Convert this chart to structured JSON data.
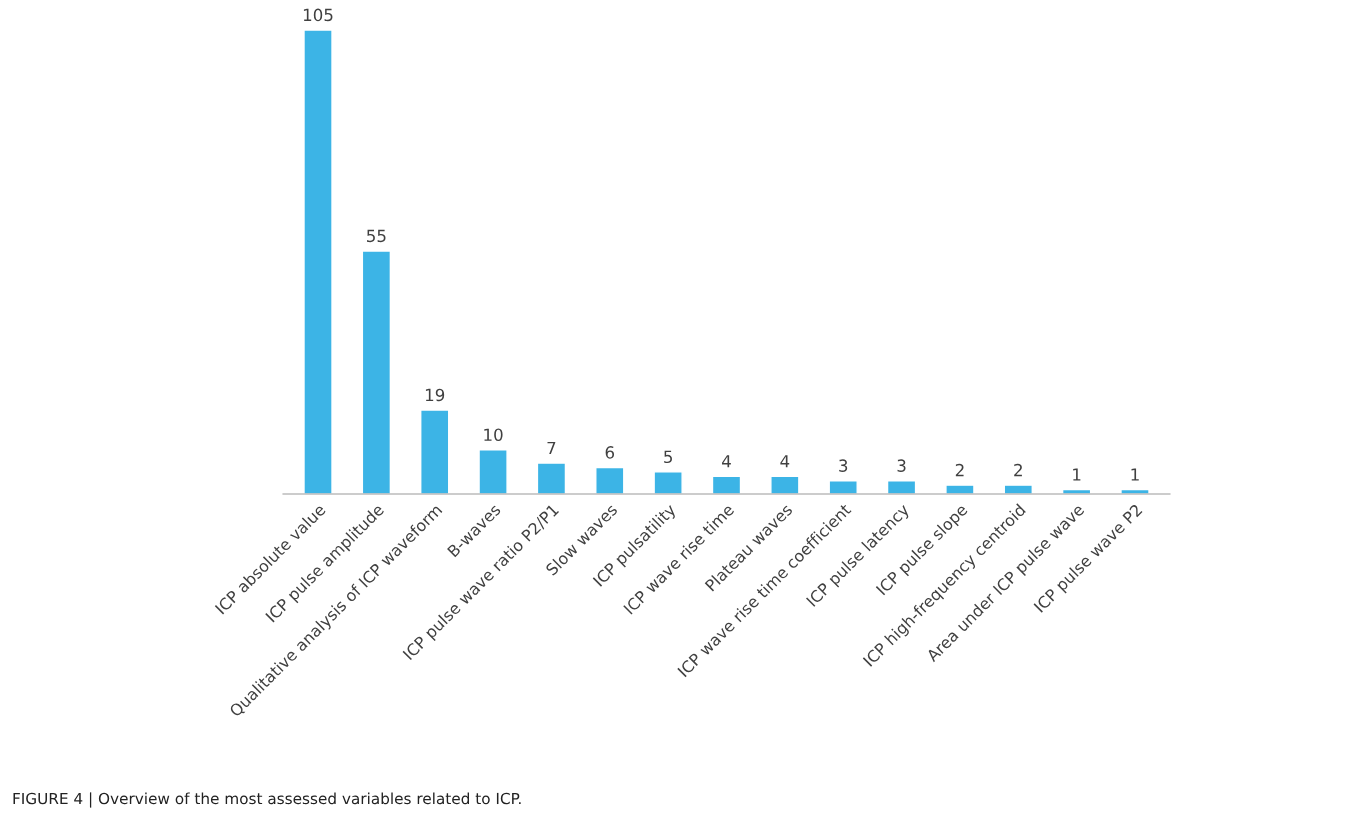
{
  "chart_data": {
    "type": "bar",
    "categories": [
      "ICP absolute value",
      "ICP pulse amplitude",
      "Qualitative analysis of ICP waveform",
      "B-waves",
      "ICP pulse wave ratio P2/P1",
      "Slow waves",
      "ICP pulsatility",
      "ICP wave rise time",
      "Plateau waves",
      "ICP wave rise time coefficient",
      "ICP pulse latency",
      "ICP pulse slope",
      "ICP high-frequency centroid",
      "Area under ICP pulse wave",
      "ICP pulse wave P2"
    ],
    "values": [
      105,
      55,
      19,
      10,
      7,
      6,
      5,
      4,
      4,
      3,
      3,
      2,
      2,
      1,
      1
    ],
    "color": "#3cb4e6",
    "data_labels": true,
    "grid": false,
    "annotations": [
      "FIGURE 4 | Overview of the most assessed variables related to ICP."
    ]
  }
}
